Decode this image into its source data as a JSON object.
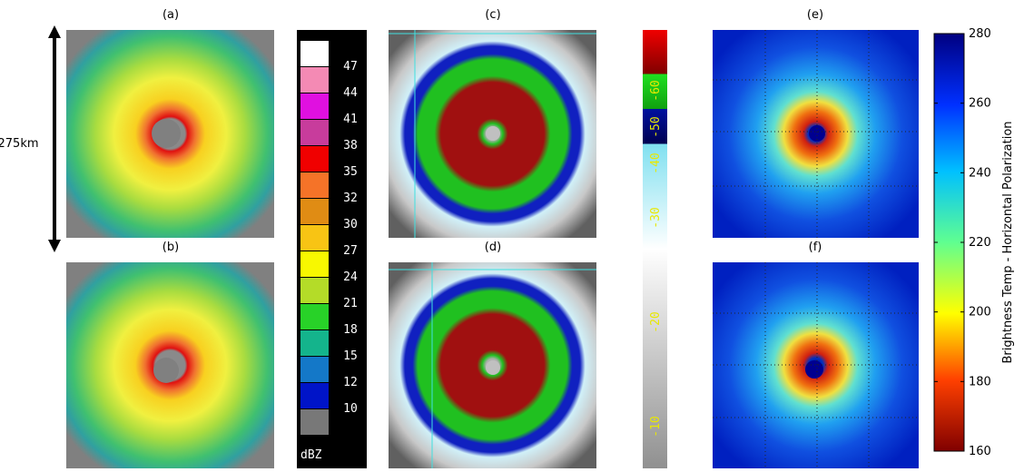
{
  "panel_labels": [
    "(a)",
    "(b)",
    "(c)",
    "(d)",
    "(e)",
    "(f)"
  ],
  "scale_label": "275km",
  "dbz_colorbar": {
    "unit": "dBZ",
    "labels": [
      47,
      44,
      41,
      38,
      35,
      32,
      30,
      27,
      24,
      21,
      18,
      15,
      12,
      10
    ],
    "colors": [
      "#ffffff",
      "#f48ab4",
      "#e010e0",
      "#c83c9c",
      "#f00000",
      "#f57328",
      "#e08c14",
      "#f8c414",
      "#f8f800",
      "#b4dc28",
      "#28d228",
      "#14b48c",
      "#1478c8",
      "#0014c8",
      "#787878"
    ]
  },
  "ir_colorbar": {
    "labels": [
      -10,
      -20,
      -30,
      -40,
      -50,
      -60
    ]
  },
  "tb_colorbar": {
    "label": "Brightness Temp - Horizontal Polarization",
    "lim": [
      160,
      280
    ],
    "ticks": [
      160,
      180,
      200,
      220,
      240,
      260,
      280
    ]
  }
}
